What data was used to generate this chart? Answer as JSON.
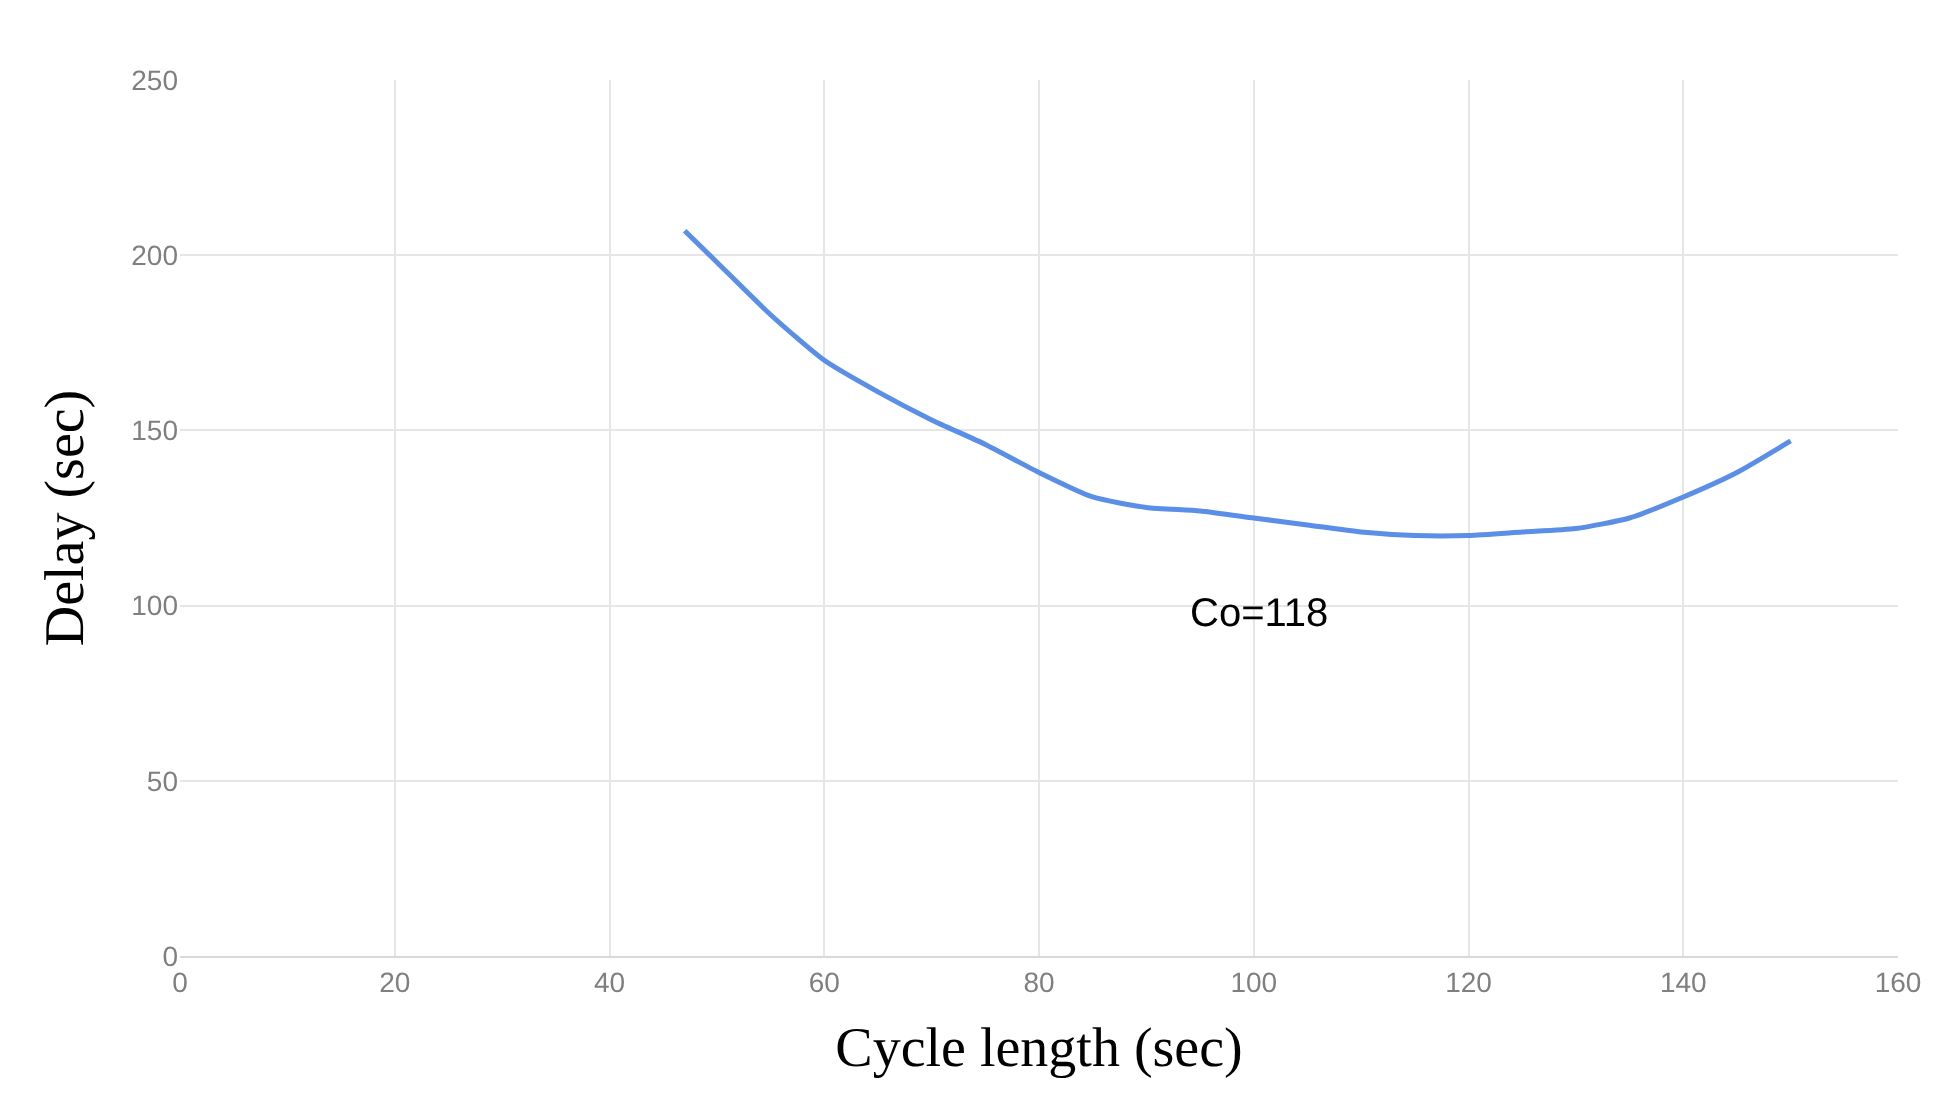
{
  "chart_data": {
    "type": "line",
    "xlabel": "Cycle length (sec)",
    "ylabel": "Delay (sec)",
    "x": [
      47,
      50,
      55,
      60,
      65,
      70,
      75,
      80,
      85,
      90,
      95,
      100,
      105,
      110,
      115,
      120,
      125,
      130,
      135,
      140,
      145,
      150
    ],
    "series": [
      {
        "color": "#5b8ee6",
        "values": [
          207,
          198,
          183,
          170,
          161,
          153,
          146,
          138,
          131,
          128,
          127,
          125,
          123,
          121,
          120,
          120,
          121,
          122,
          125,
          131,
          138,
          147
        ]
      }
    ],
    "xlim": [
      0,
      160
    ],
    "xticks": [
      0,
      20,
      40,
      60,
      80,
      100,
      120,
      140,
      160
    ],
    "ylim": [
      0,
      250
    ],
    "yticks": [
      0,
      50,
      100,
      150,
      200,
      250
    ],
    "grid": true,
    "marker": "none",
    "line_style": "solid",
    "annotations": [
      "Co=118"
    ]
  }
}
